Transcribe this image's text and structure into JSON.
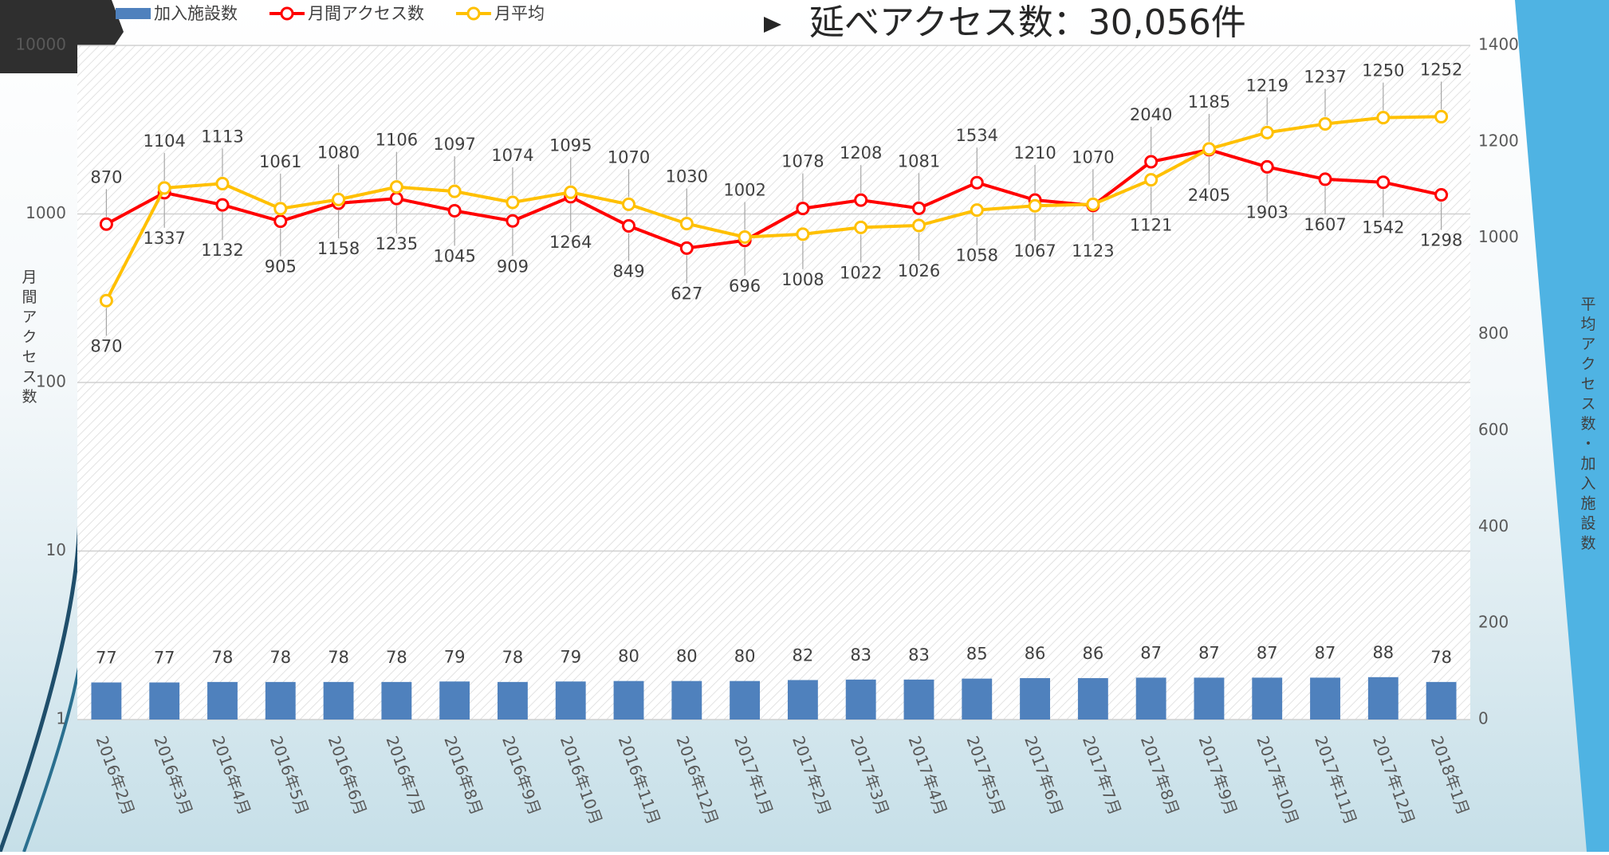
{
  "chart_data": {
    "type": "combo",
    "title": "延べアクセス数：30,056件",
    "y_label": "月間アクセス数",
    "y2_label": "平均アクセス数・加入施設数",
    "categories": [
      "2016年2月",
      "2016年3月",
      "2016年4月",
      "2016年5月",
      "2016年6月",
      "2016年7月",
      "2016年8月",
      "2016年9月",
      "2016年10月",
      "2016年11月",
      "2016年12月",
      "2017年1月",
      "2017年2月",
      "2017年3月",
      "2017年4月",
      "2017年5月",
      "2017年6月",
      "2017年7月",
      "2017年8月",
      "2017年9月",
      "2017年10月",
      "2017年11月",
      "2017年12月",
      "2018年1月"
    ],
    "series": [
      {
        "name": "加入施設数",
        "type": "bar",
        "axis": "y2",
        "color": "#4f81bd",
        "values": [
          77,
          77,
          78,
          78,
          78,
          78,
          79,
          78,
          79,
          80,
          80,
          80,
          82,
          83,
          83,
          85,
          86,
          86,
          87,
          87,
          87,
          87,
          88,
          78
        ]
      },
      {
        "name": "月間アクセス数",
        "type": "line",
        "color": "#ff0000",
        "values": [
          870,
          1337,
          1132,
          905,
          1158,
          1235,
          1045,
          909,
          1264,
          849,
          627,
          696,
          1078,
          1208,
          1081,
          1534,
          1210,
          1123,
          2040,
          2405,
          1903,
          1607,
          1542,
          1298
        ]
      },
      {
        "name": "月平均",
        "type": "line",
        "axis": "y2",
        "color": "#ffc000",
        "values": [
          870,
          1104,
          1113,
          1061,
          1080,
          1106,
          1097,
          1074,
          1095,
          1070,
          1030,
          1002,
          1008,
          1022,
          1026,
          1058,
          1067,
          1070,
          1121,
          1185,
          1219,
          1237,
          1250,
          1252
        ]
      }
    ],
    "ylim": [
      1,
      10000
    ],
    "yticks": [
      1,
      10,
      100,
      1000,
      10000
    ],
    "log_scale": true,
    "y2lim": [
      0,
      1400
    ],
    "y2ticks": [
      0,
      200,
      400,
      600,
      800,
      1000,
      1200,
      1400
    ],
    "grid": true
  }
}
